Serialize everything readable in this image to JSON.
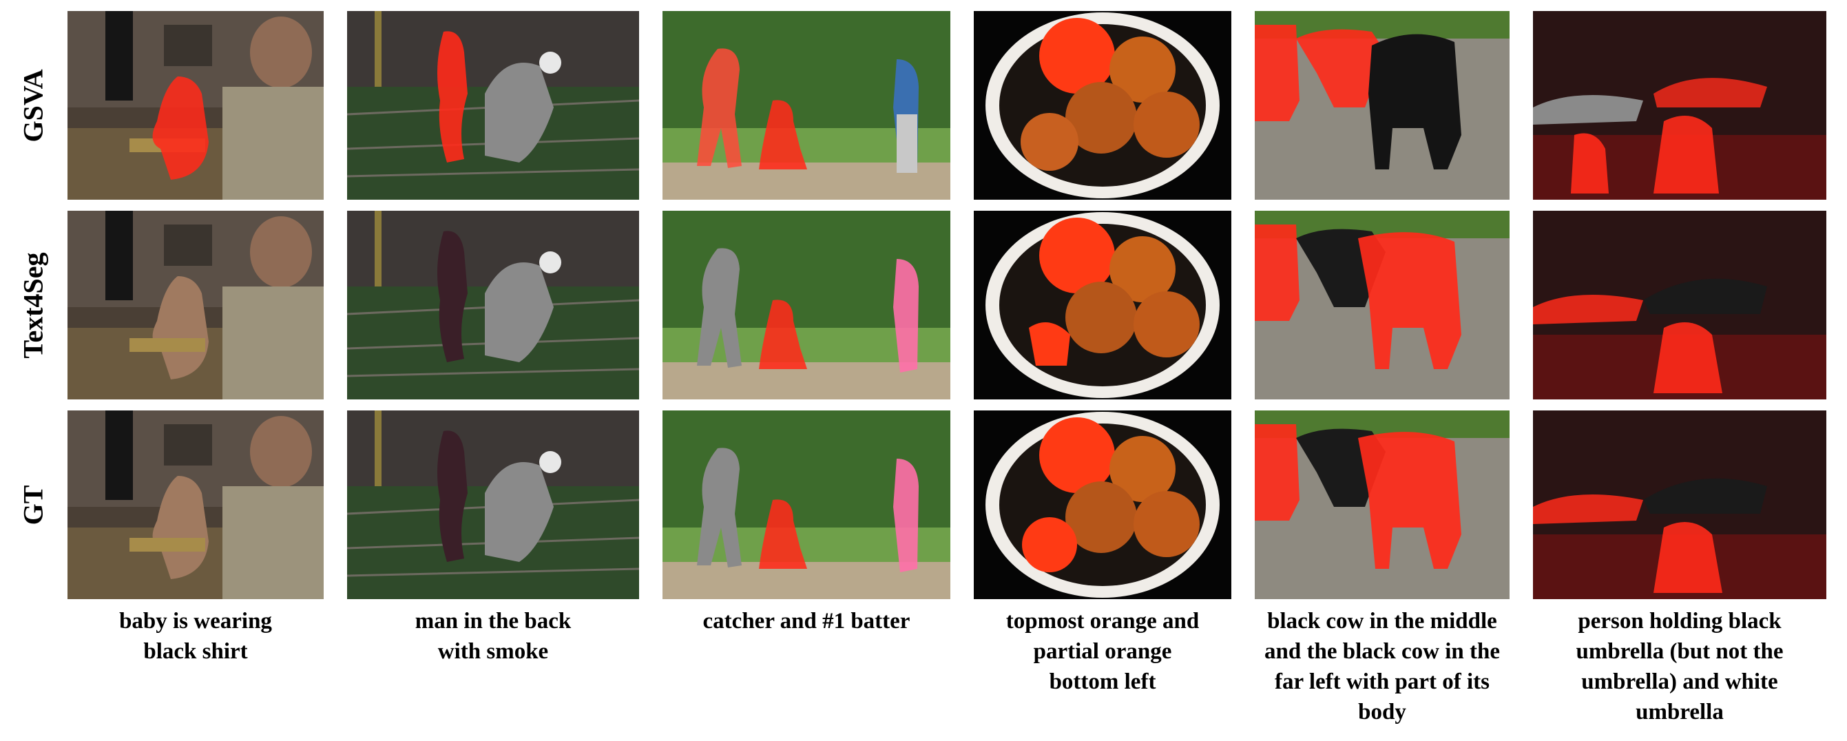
{
  "rows": [
    "GSVA",
    "Text4Seg",
    "GT"
  ],
  "captions": [
    [
      "baby is wearing",
      "black shirt"
    ],
    [
      "man in the back",
      "with smoke"
    ],
    [
      "catcher and #1 batter"
    ],
    [
      "topmost orange and",
      "partial orange",
      "bottom left"
    ],
    [
      "black cow in the middle",
      "and the black cow in the",
      "far left with part of its",
      "body"
    ],
    [
      "person holding black",
      "umbrella (but not the",
      "umbrella) and white",
      "umbrella"
    ]
  ],
  "colors": {
    "mask": "#ff2a1a"
  }
}
